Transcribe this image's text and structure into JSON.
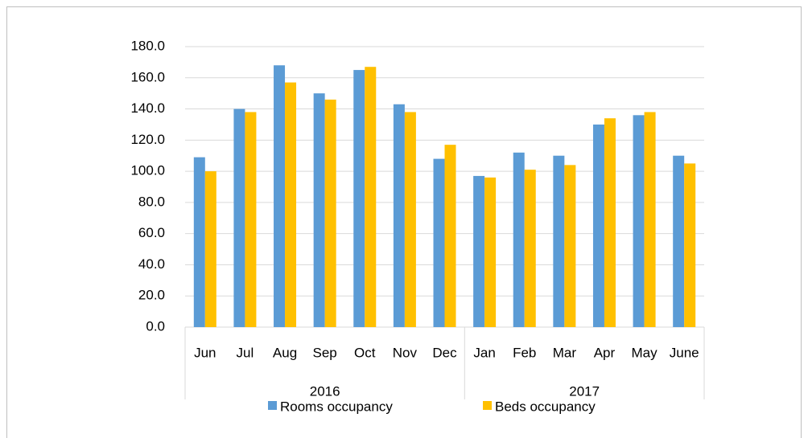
{
  "chart_data": {
    "type": "bar",
    "categories": [
      "Jun",
      "Jul",
      "Aug",
      "Sep",
      "Oct",
      "Nov",
      "Dec",
      "Jan",
      "Feb",
      "Mar",
      "Apr",
      "May",
      "June"
    ],
    "groups": [
      {
        "label": "2016",
        "count": 7
      },
      {
        "label": "2017",
        "count": 6
      }
    ],
    "series": [
      {
        "name": "Rooms occupancy",
        "color": "#5b9bd5",
        "values": [
          109,
          140,
          168,
          150,
          165,
          143,
          108,
          97,
          112,
          110,
          130,
          136,
          110
        ]
      },
      {
        "name": "Beds occupancy",
        "color": "#ffc000",
        "values": [
          100,
          138,
          157,
          146,
          167,
          138,
          117,
          96,
          101,
          104,
          134,
          138,
          105
        ]
      }
    ],
    "ylim": [
      0,
      180
    ],
    "yticks": [
      {
        "value": 0,
        "label": "0.0"
      },
      {
        "value": 20,
        "label": "20.0"
      },
      {
        "value": 40,
        "label": "40.0"
      },
      {
        "value": 60,
        "label": "60.0"
      },
      {
        "value": 80,
        "label": "80.0"
      },
      {
        "value": 100,
        "label": "100.0"
      },
      {
        "value": 120,
        "label": "120.0"
      },
      {
        "value": 140,
        "label": "140.0"
      },
      {
        "value": 160,
        "label": "160.0"
      },
      {
        "value": 180,
        "label": "180.0"
      }
    ],
    "grid": true,
    "legend": "bottom"
  }
}
